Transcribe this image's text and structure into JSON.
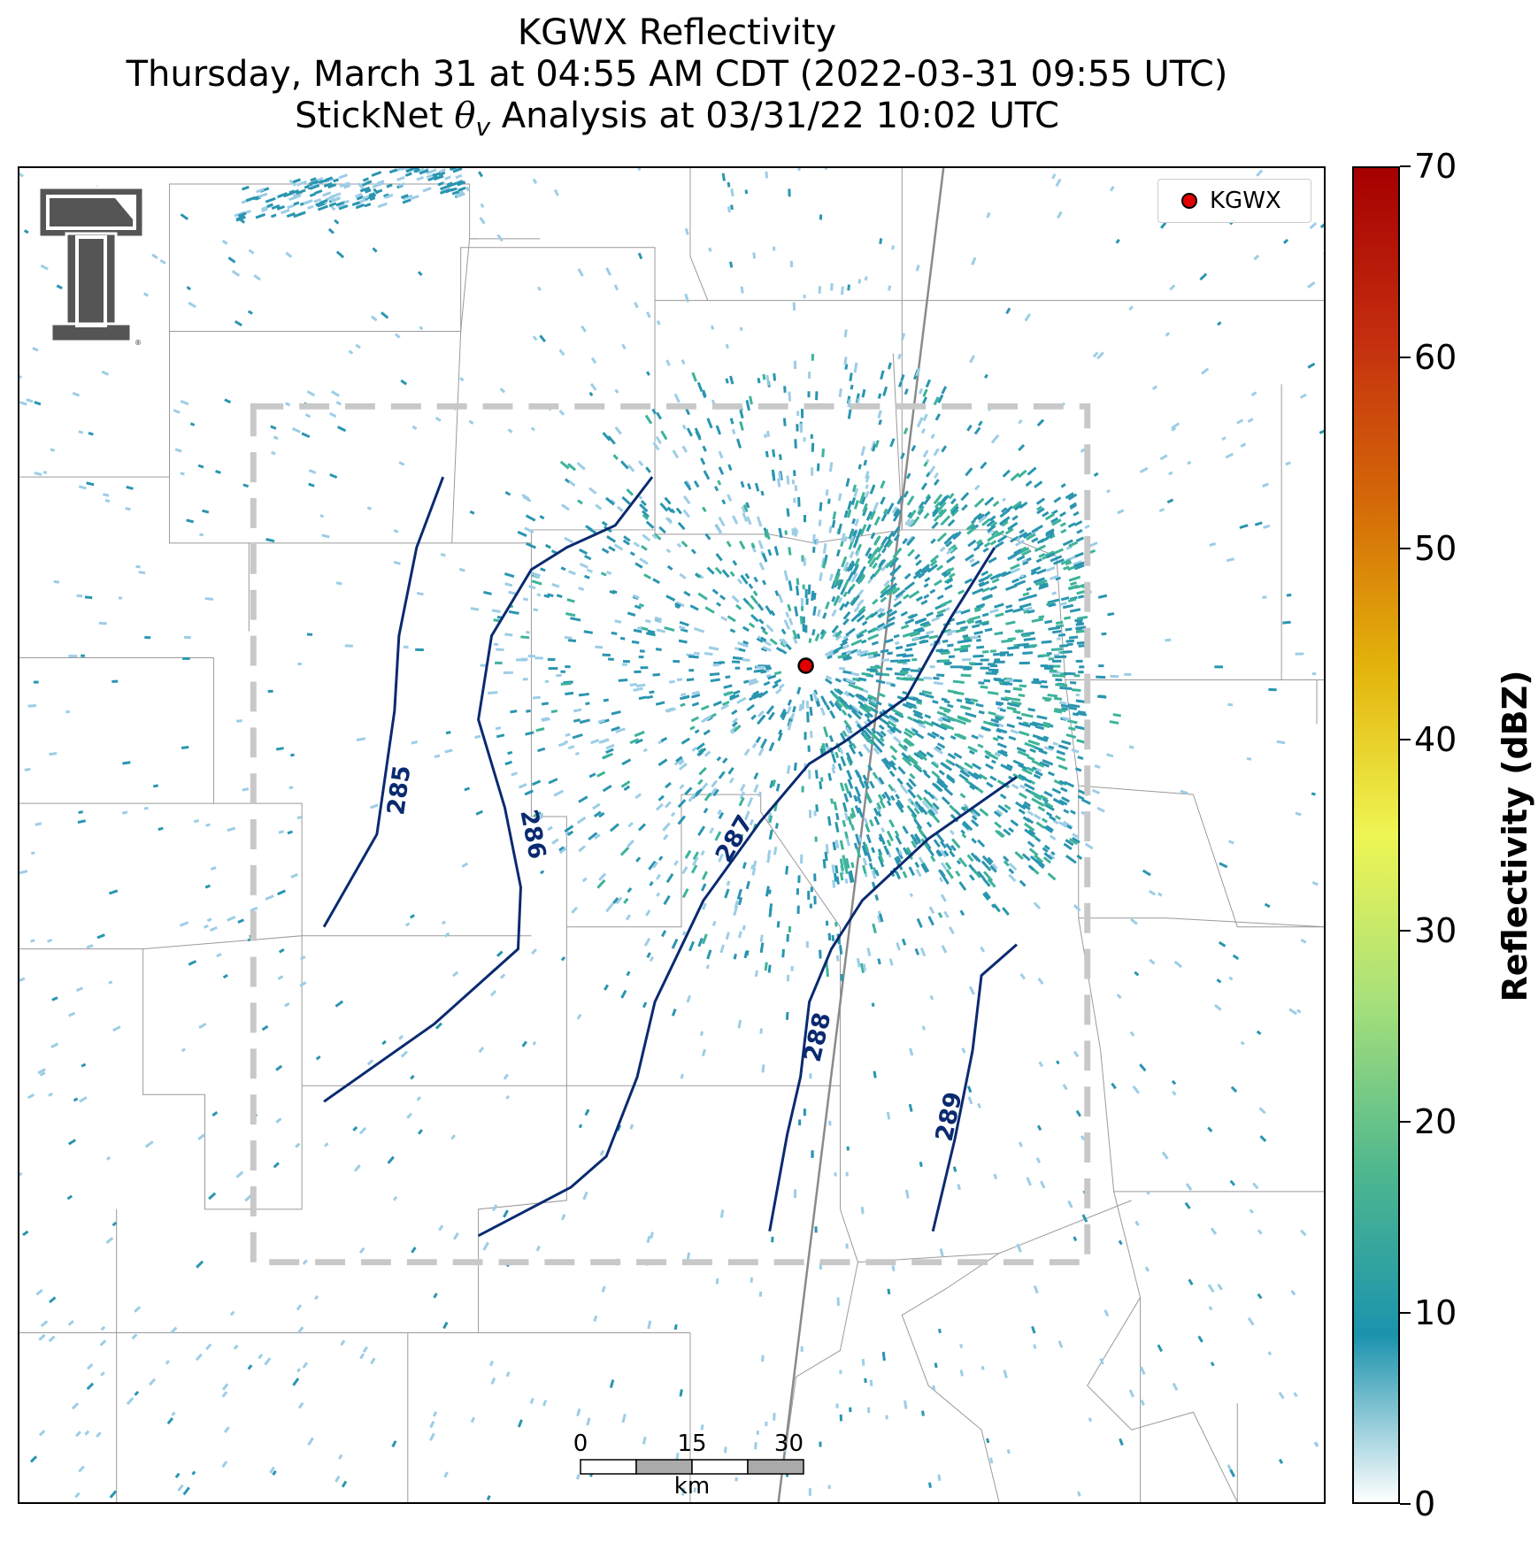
{
  "title": {
    "line1": "KGWX Reflectivity",
    "line2": "Thursday, March 31 at 04:55 AM CDT (2022-03-31 09:55 UTC)",
    "line3_prefix": "StickNet ",
    "line3_theta": "θ",
    "line3_sub": "v",
    "line3_suffix": " Analysis at 03/31/22 10:02 UTC"
  },
  "legend": {
    "label": "KGWX",
    "marker_color": "#e00000"
  },
  "colorbar": {
    "label": "Reflectivity (dBZ)",
    "min": 0,
    "max": 70,
    "ticks": [
      "0",
      "10",
      "20",
      "30",
      "40",
      "50",
      "60",
      "70"
    ],
    "colors": [
      "#ffffff",
      "#1b93ad",
      "#4fb88e",
      "#a7e07a",
      "#eef553",
      "#e3b40b",
      "#d46908",
      "#c42d0f",
      "#a50000"
    ]
  },
  "scale_bar": {
    "ticks": [
      "0",
      "15",
      "30"
    ],
    "unit": "km"
  },
  "contours": {
    "color": "#0a2a70",
    "labels": [
      "285",
      "286",
      "287",
      "288",
      "289"
    ]
  },
  "analysis_box_color": "#c8c8c8",
  "radar_colors": {
    "weak": "#9ccde6",
    "mid": "#2a95b0",
    "strong": "#3db39a"
  }
}
